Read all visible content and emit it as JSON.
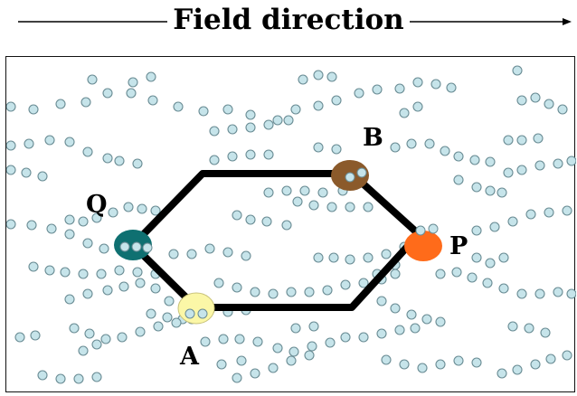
{
  "header": {
    "title": "Field direction"
  },
  "labels": {
    "q": "Q",
    "a": "A",
    "b": "B",
    "p": "P"
  },
  "colors": {
    "bead_fill": "#c6e4ea",
    "bead_stroke": "#6a8c94",
    "path": "#000000",
    "q_node": "#0f7071",
    "a_node": "#fbf7a7",
    "b_node": "#8b5a2b",
    "p_node": "#ff6b1a"
  }
}
